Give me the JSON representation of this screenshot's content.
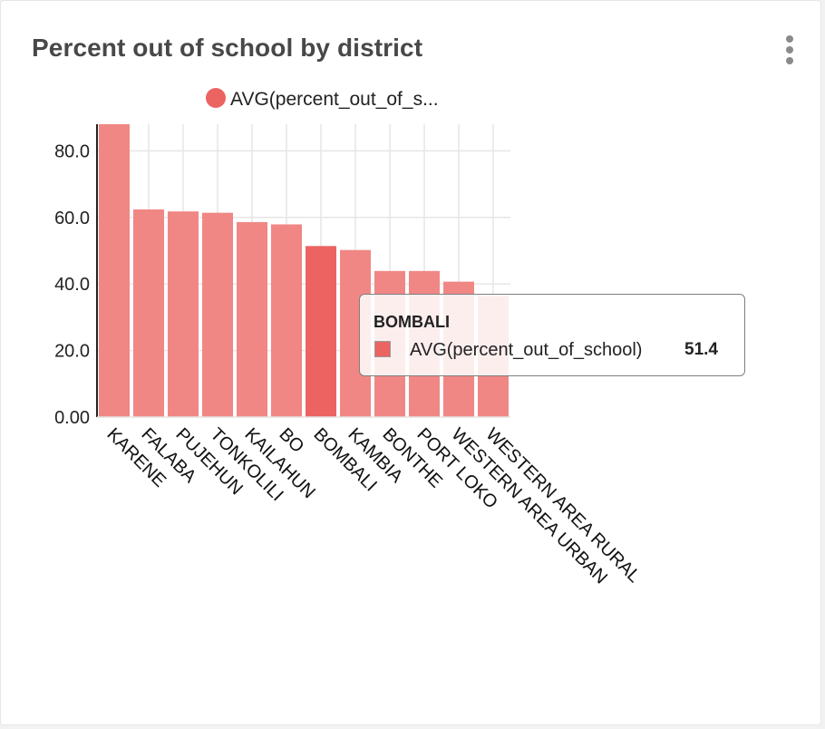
{
  "card": {
    "title": "Percent out of school by district"
  },
  "legend": {
    "label": "AVG(percent_out_of_s..."
  },
  "tooltip": {
    "title": "BOMBALI",
    "series_name": "AVG(percent_out_of_school)",
    "value": "51.4"
  },
  "colors": {
    "bar": "#f08784",
    "bar_highlight": "#eb6462",
    "legend_dot": "#eb6462",
    "grid": "#e6e6e6",
    "axis": "#222222"
  },
  "icons": {
    "menu": "vertical-ellipsis-icon"
  },
  "chart_data": {
    "type": "bar",
    "title": "Percent out of school by district",
    "xlabel": "",
    "ylabel": "",
    "categories": [
      "KARENE",
      "FALABA",
      "PUJEHUN",
      "TONKOLILI",
      "KAILAHUN",
      "BO",
      "BOMBALI",
      "KAMBIA",
      "BONTHE",
      "PORT LOKO",
      "WESTERN AREA URBAN",
      "WESTERN AREA RURAL"
    ],
    "series": [
      {
        "name": "AVG(percent_out_of_s...",
        "values": [
          88.2,
          62.4,
          61.8,
          61.4,
          58.6,
          57.9,
          51.4,
          50.2,
          43.9,
          43.9,
          40.7,
          36.4
        ]
      }
    ],
    "highlighted_category": "BOMBALI",
    "yticks": [
      "0.00",
      "20.0",
      "40.0",
      "60.0",
      "80.0"
    ],
    "ytick_values": [
      0,
      20,
      40,
      60,
      80
    ],
    "ylim": [
      0,
      88
    ],
    "grid": true,
    "legend_position": "top"
  }
}
